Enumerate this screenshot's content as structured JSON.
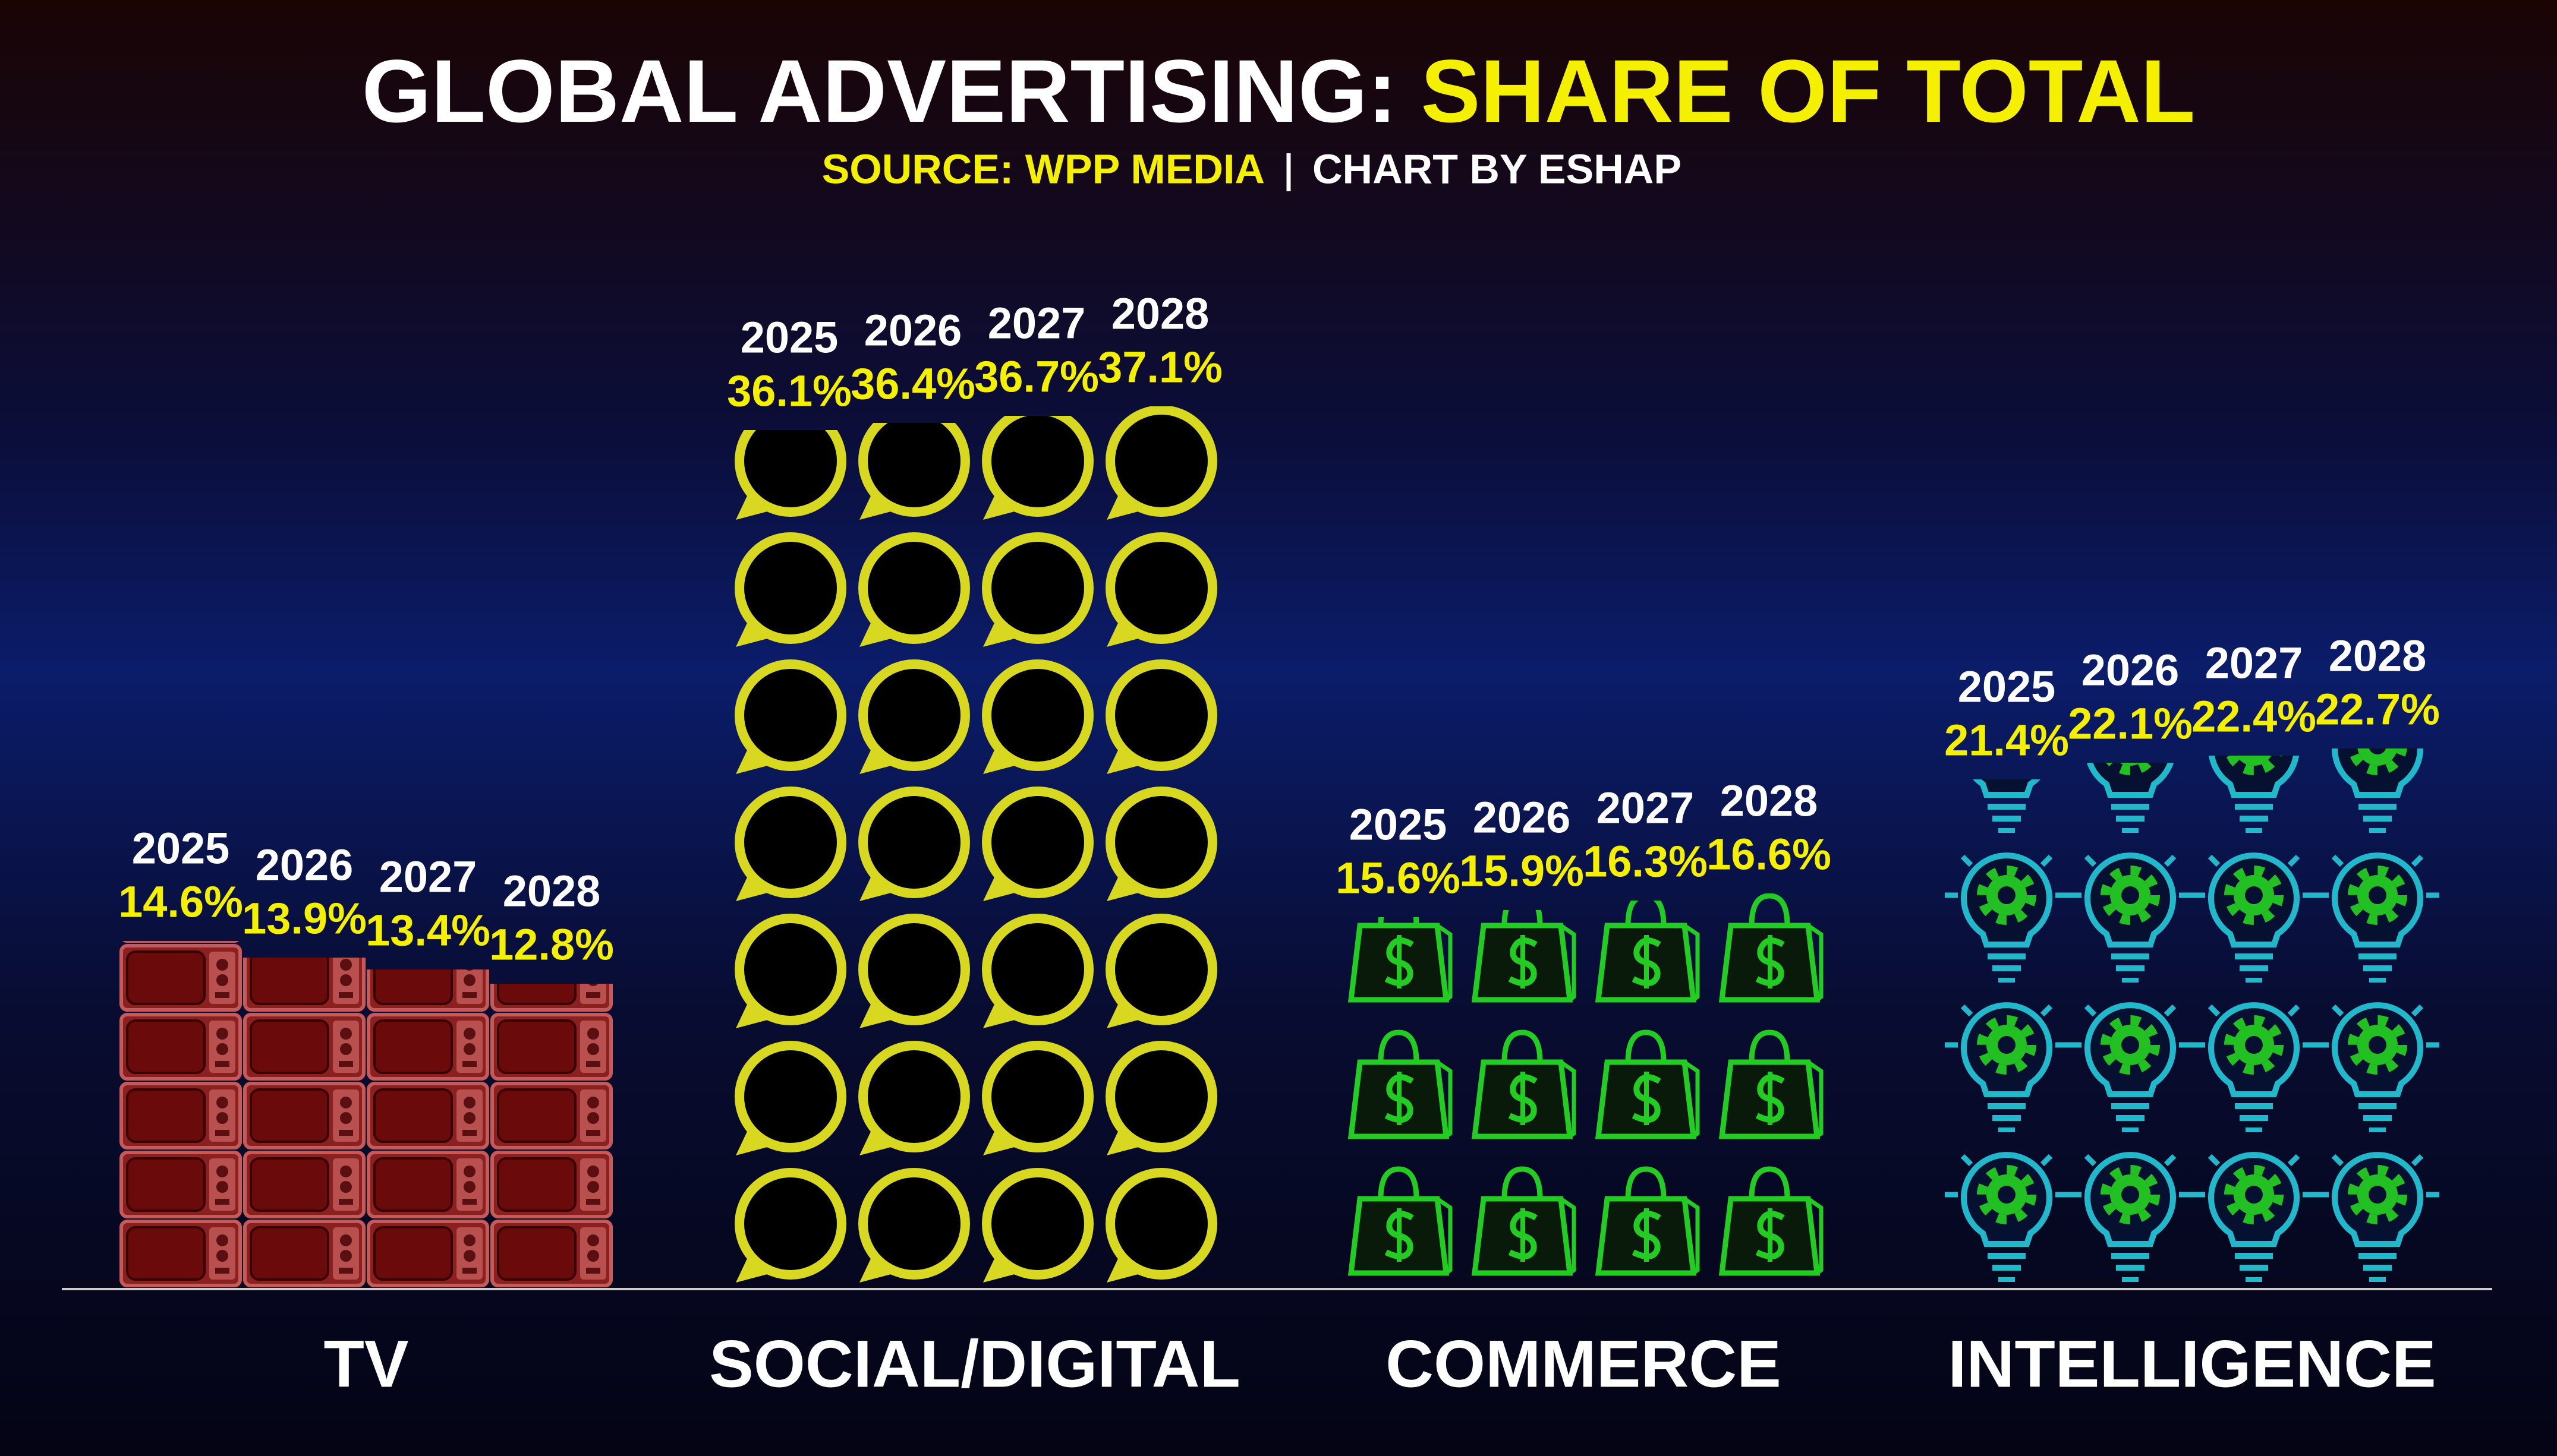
{
  "chart_data": {
    "type": "pictogram-bar",
    "title": "GLOBAL ADVERTISING:",
    "title_highlight": "SHARE OF TOTAL",
    "source": "SOURCE: WPP MEDIA",
    "credit": "CHART BY ESHAP",
    "categories": [
      "TV",
      "SOCIAL/DIGITAL",
      "COMMERCE",
      "INTELLIGENCE"
    ],
    "colors": [
      "#c65a5a",
      "#d8d820",
      "#22cc22",
      "#22b8cc"
    ],
    "series": [
      {
        "name": "2025",
        "values": [
          14.6,
          36.1,
          15.6,
          21.4
        ],
        "value_labels": [
          "14.6%",
          "36.1%",
          "15.6%",
          "21.4%"
        ]
      },
      {
        "name": "2026",
        "values": [
          13.9,
          36.4,
          15.9,
          22.1
        ],
        "value_labels": [
          "13.9%",
          "36.4%",
          "15.9%",
          "22.1%"
        ]
      },
      {
        "name": "2027",
        "values": [
          13.4,
          36.7,
          16.3,
          22.4
        ],
        "value_labels": [
          "13.4%",
          "36.7%",
          "16.3%",
          "22.4%"
        ]
      },
      {
        "name": "2028",
        "values": [
          12.8,
          37.1,
          16.6,
          22.7
        ],
        "value_labels": [
          "12.8%",
          "37.1%",
          "16.6%",
          "22.7%"
        ]
      }
    ]
  }
}
